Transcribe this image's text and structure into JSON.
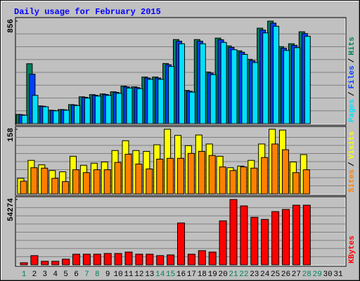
{
  "title": "Daily usage for February 2015",
  "legend_separator": "/",
  "weekend_color": "#00805c",
  "chart_data": [
    {
      "type": "bar",
      "ylim": [
        0,
        856
      ],
      "yticks": [
        856
      ],
      "series": [
        {
          "name": "Hits",
          "color": "#00805c",
          "values": [
            77,
            500,
            148,
            112,
            118,
            159,
            224,
            242,
            248,
            266,
            313,
            307,
            389,
            389,
            502,
            702,
            277,
            702,
            431,
            714,
            649,
            608,
            537,
            797,
            856,
            643,
            667,
            767,
            null,
            null,
            null
          ]
        },
        {
          "name": "Files",
          "color": "#0040ff",
          "values": [
            74,
            413,
            145,
            110,
            116,
            156,
            220,
            237,
            243,
            261,
            307,
            301,
            381,
            381,
            492,
            688,
            271,
            688,
            422,
            700,
            636,
            596,
            526,
            781,
            839,
            630,
            654,
            752,
            null,
            null,
            null
          ]
        },
        {
          "name": "Pages",
          "color": "#00e0ff",
          "values": [
            70,
            236,
            141,
            107,
            112,
            151,
            213,
            230,
            236,
            253,
            297,
            292,
            370,
            370,
            477,
            667,
            263,
            667,
            409,
            678,
            617,
            578,
            510,
            757,
            813,
            611,
            634,
            729,
            null,
            null,
            null
          ]
        }
      ]
    },
    {
      "type": "bar",
      "ylim": [
        0,
        158
      ],
      "yticks": [
        158
      ],
      "series": [
        {
          "name": "Visits",
          "color": "#ffff00",
          "values": [
            38,
            82,
            71,
            57,
            54,
            92,
            70,
            75,
            78,
            106,
            130,
            106,
            104,
            120,
            158,
            143,
            118,
            144,
            122,
            92,
            64,
            68,
            82,
            122,
            158,
            156,
            78,
            96,
            null,
            null,
            null
          ]
        },
        {
          "name": "Sites",
          "color": "#ff8000",
          "values": [
            31,
            64,
            63,
            38,
            30,
            59,
            52,
            59,
            59,
            77,
            97,
            73,
            61,
            85,
            87,
            87,
            99,
            104,
            94,
            66,
            57,
            66,
            63,
            89,
            122,
            108,
            52,
            59,
            null,
            null,
            null
          ]
        }
      ]
    },
    {
      "type": "bar",
      "ylim": [
        0,
        54274
      ],
      "yticks": [
        54274
      ],
      "categories": [
        "1",
        "2",
        "3",
        "4",
        "5",
        "6",
        "7",
        "8",
        "9",
        "10",
        "11",
        "12",
        "13",
        "14",
        "15",
        "16",
        "17",
        "18",
        "19",
        "20",
        "21",
        "22",
        "23",
        "24",
        "25",
        "26",
        "27",
        "28",
        "29",
        "30",
        "31"
      ],
      "series": [
        {
          "name": "KBytes",
          "color": "#ff0000",
          "values": [
            1770,
            7670,
            2950,
            2950,
            4720,
            8850,
            8850,
            8850,
            9440,
            9440,
            10620,
            8850,
            8850,
            7670,
            8260,
            34810,
            8850,
            11800,
            10620,
            36580,
            54274,
            48970,
            39530,
            37760,
            44250,
            46020,
            49560,
            49560,
            null,
            null,
            null
          ]
        }
      ]
    }
  ]
}
